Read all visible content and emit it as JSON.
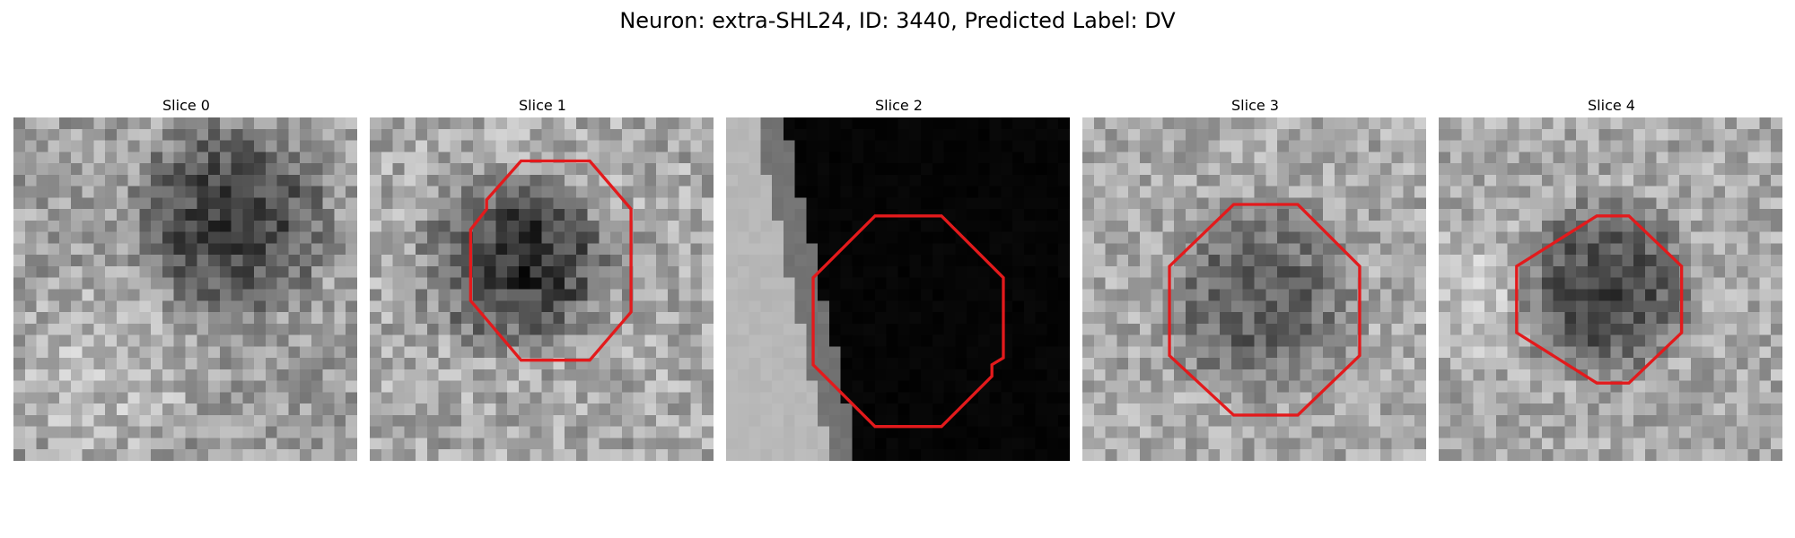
{
  "figure": {
    "title": "Neuron: extra-SHL24, ID: 3440, Predicted Label: DV"
  },
  "colors": {
    "outline": "#e31a1c",
    "background": "#ffffff"
  },
  "slices": [
    {
      "title": "Slice 0",
      "has_outline": false
    },
    {
      "title": "Slice 1",
      "has_outline": true
    },
    {
      "title": "Slice 2",
      "has_outline": true
    },
    {
      "title": "Slice 3",
      "has_outline": true
    },
    {
      "title": "Slice 4",
      "has_outline": true
    }
  ]
}
